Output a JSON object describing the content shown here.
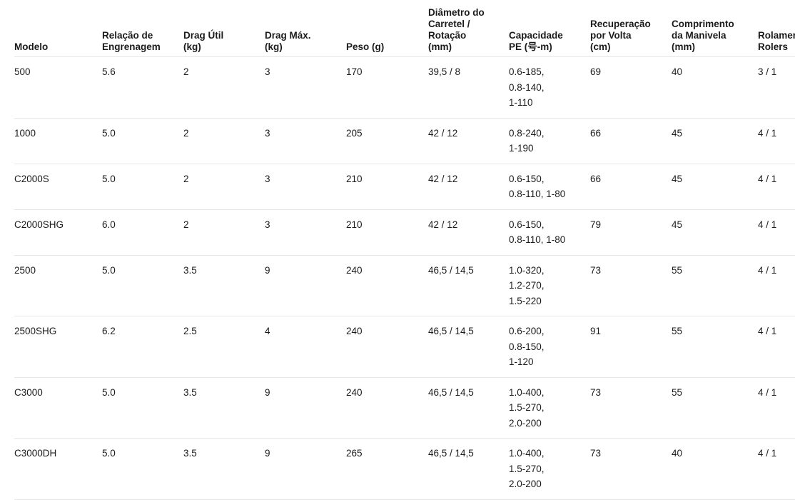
{
  "table": {
    "columns": [
      {
        "id": "modelo",
        "lines": [
          "Modelo"
        ]
      },
      {
        "id": "relacao-engrenagem",
        "lines": [
          "Relação de",
          "Engrenagem"
        ]
      },
      {
        "id": "drag-util",
        "lines": [
          "Drag Útil",
          "(kg)"
        ]
      },
      {
        "id": "drag-max",
        "lines": [
          "Drag Máx.",
          "(kg)"
        ]
      },
      {
        "id": "peso",
        "lines": [
          "Peso (g)"
        ]
      },
      {
        "id": "diametro-carretel",
        "lines": [
          "Diâmetro do",
          "Carretel /",
          "Rotação",
          "(mm)"
        ]
      },
      {
        "id": "capacidade-pe",
        "lines": [
          "Capacidade",
          "PE (号-m)"
        ]
      },
      {
        "id": "recuperacao-volta",
        "lines": [
          "Recuperação",
          "por Volta",
          "(cm)"
        ]
      },
      {
        "id": "comprimento-manivela",
        "lines": [
          "Comprimento",
          "da Manivela",
          "(mm)"
        ]
      },
      {
        "id": "rolamentos-rolers",
        "lines": [
          "Rolamentos",
          "Rolers"
        ]
      }
    ],
    "rows": [
      [
        "500",
        "5.6",
        "2",
        "3",
        "170",
        "39,5 / 8",
        [
          "0.6-185,",
          "0.8-140,",
          "1-110"
        ],
        "69",
        "40",
        "3 / 1"
      ],
      [
        "1000",
        "5.0",
        "2",
        "3",
        "205",
        "42 / 12",
        [
          "0.8-240,",
          "1-190"
        ],
        "66",
        "45",
        "4 / 1"
      ],
      [
        "C2000S",
        "5.0",
        "2",
        "3",
        "210",
        "42 / 12",
        [
          "0.6-150,",
          "0.8-110, 1-80"
        ],
        "66",
        "45",
        "4 / 1"
      ],
      [
        "C2000SHG",
        "6.0",
        "2",
        "3",
        "210",
        "42 / 12",
        [
          "0.6-150,",
          "0.8-110, 1-80"
        ],
        "79",
        "45",
        "4 / 1"
      ],
      [
        "2500",
        "5.0",
        "3.5",
        "9",
        "240",
        "46,5 / 14,5",
        [
          "1.0-320,",
          "1.2-270,",
          "1.5-220"
        ],
        "73",
        "55",
        "4 / 1"
      ],
      [
        "2500SHG",
        "6.2",
        "2.5",
        "4",
        "240",
        "46,5 / 14,5",
        [
          "0.6-200,",
          "0.8-150,",
          "1-120"
        ],
        "91",
        "55",
        "4 / 1"
      ],
      [
        "C3000",
        "5.0",
        "3.5",
        "9",
        "240",
        "46,5 / 14,5",
        [
          "1.0-400,",
          "1.5-270,",
          "2.0-200"
        ],
        "73",
        "55",
        "4 / 1"
      ],
      [
        "C3000DH",
        "5.0",
        "3.5",
        "9",
        "265",
        "46,5 / 14,5",
        [
          "1.0-400,",
          "1.5-270,",
          "2.0-200"
        ],
        "73",
        "40",
        "4 / 1"
      ]
    ]
  },
  "colors": {
    "text": "#1b1b1b",
    "divider": "#e7e7e7",
    "background": "#ffffff"
  }
}
